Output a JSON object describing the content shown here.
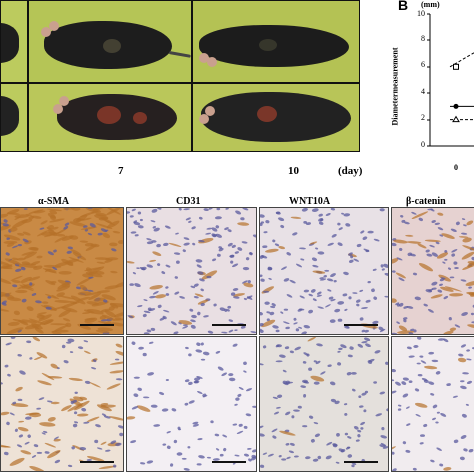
{
  "panel_a": {
    "day_labels": [
      "7",
      "10",
      "(day)"
    ]
  },
  "panel_b": {
    "letter": "B",
    "unit": "(mm)",
    "ylabel": "Diametermeasurement",
    "chart_data": {
      "type": "line",
      "x": [
        0
      ],
      "ylim": [
        0,
        10
      ],
      "yticks": [
        "10",
        "8",
        "6",
        "4",
        "2",
        "0"
      ],
      "xticks": [
        "0"
      ],
      "series": [
        {
          "values": [
            6
          ]
        },
        {
          "values": [
            3
          ]
        },
        {
          "values": [
            2
          ]
        }
      ]
    }
  },
  "histology": {
    "stain_labels": [
      "α-SMA",
      "CD31",
      "WNT10A",
      "β-catenin"
    ]
  },
  "colors": {
    "photo_background": "#b8c65a",
    "brown_stain": "#b5702a",
    "hematoxylin": "#5a5a9e"
  }
}
